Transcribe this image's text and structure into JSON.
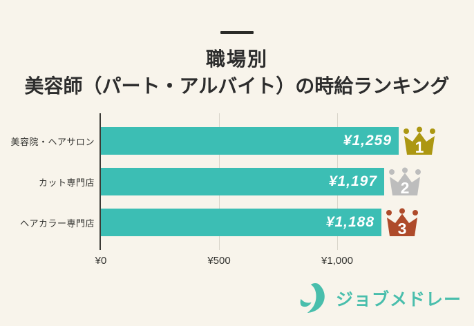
{
  "title": {
    "line1": "職場別",
    "line2": "美容師（パート・アルバイト）の時給ランキング"
  },
  "chart_data": {
    "type": "bar",
    "orientation": "horizontal",
    "title": "職場別 美容師（パート・アルバイト）の時給ランキング",
    "categories": [
      "美容院・ヘアサロン",
      "カット専門店",
      "ヘアカラー専門店"
    ],
    "values": [
      1259,
      1197,
      1188
    ],
    "value_labels": [
      "¥1,259",
      "¥1,197",
      "¥1,188"
    ],
    "ranks": [
      "1",
      "2",
      "3"
    ],
    "rank_colors": [
      "#AC9712",
      "#BDBDBD",
      "#AE4A2A"
    ],
    "rank_number_color": "#FFFFFF",
    "x_ticks": [
      "¥0",
      "¥500",
      "¥1,000"
    ],
    "x_tick_values": [
      0,
      500,
      1000
    ],
    "xlim": [
      0,
      1520
    ],
    "bar_color": "#3CBEB4",
    "grid": true,
    "value_label_position": "inside-end",
    "background_color": "#F8F4EB"
  },
  "footer": {
    "logo_text": "ジョブメドレー",
    "logo_color": "#49BEAC"
  }
}
